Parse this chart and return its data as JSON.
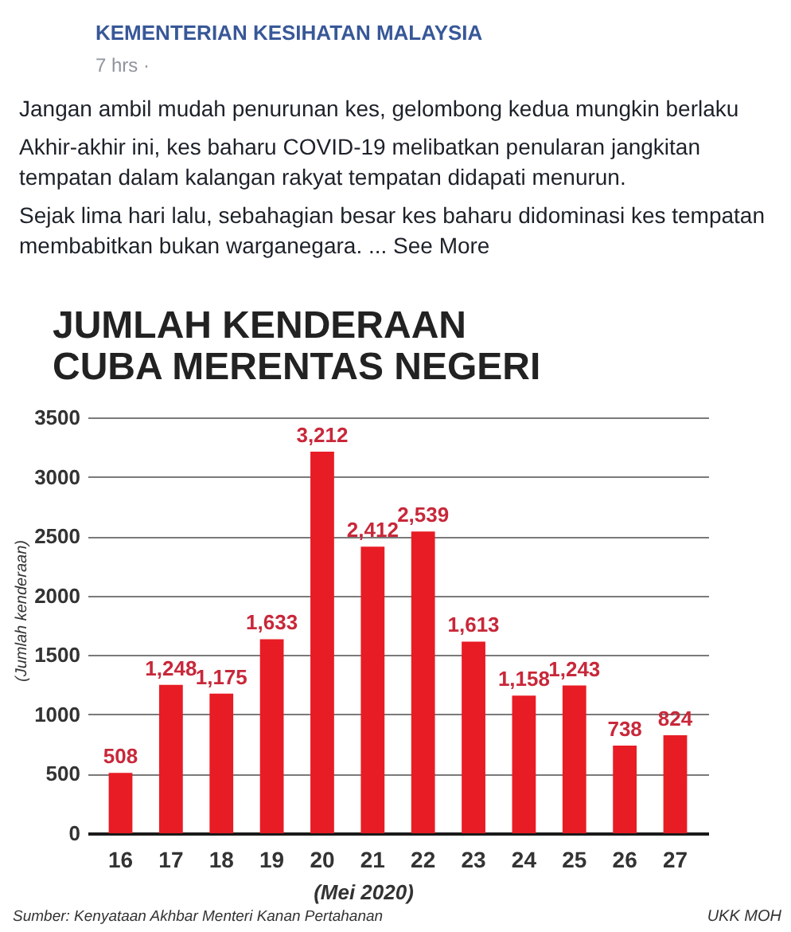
{
  "chart_data": {
    "type": "bar",
    "title": "JUMLAH KENDERAAN CUBA MERENTAS NEGERI",
    "xlabel": "(Mei 2020)",
    "ylabel": "(Jumlah kenderaan)",
    "categories": [
      "16",
      "17",
      "18",
      "19",
      "20",
      "21",
      "22",
      "23",
      "24",
      "25",
      "26",
      "27"
    ],
    "values": [
      508,
      1248,
      1175,
      1633,
      3212,
      2412,
      2539,
      1613,
      1158,
      1243,
      738,
      824
    ],
    "value_labels": [
      "508",
      "1,248",
      "1,175",
      "1,633",
      "3,212",
      "2,412",
      "2,539",
      "1,613",
      "1,158",
      "1,243",
      "738",
      "824"
    ],
    "color": "#e81c24",
    "ylim": [
      0,
      3500
    ],
    "yticks": [
      0,
      500,
      1000,
      1500,
      2000,
      2500,
      3000,
      3500
    ],
    "grid": "y",
    "annotations": [
      "KEMENTERIAN KESIHATAN MALAYSIA",
      "7 hrs ·",
      "Jangan ambil mudah penurunan kes, gelombong kedua mungkin berlaku",
      "Akhir-akhir ini, kes baharu COVID-19 melibatkan penularan jangkitan tempatan dalam kalangan rakyat tempatan didapati menurun.",
      "Sejak lima hari lalu, sebahagian besar kes baharu didominasi kes tempatan membabitkan bukan warganegara. ... See More",
      "Sumber: Kenyataan Akhbar Menteri Kanan Pertahanan",
      "UKK MOH"
    ]
  }
}
